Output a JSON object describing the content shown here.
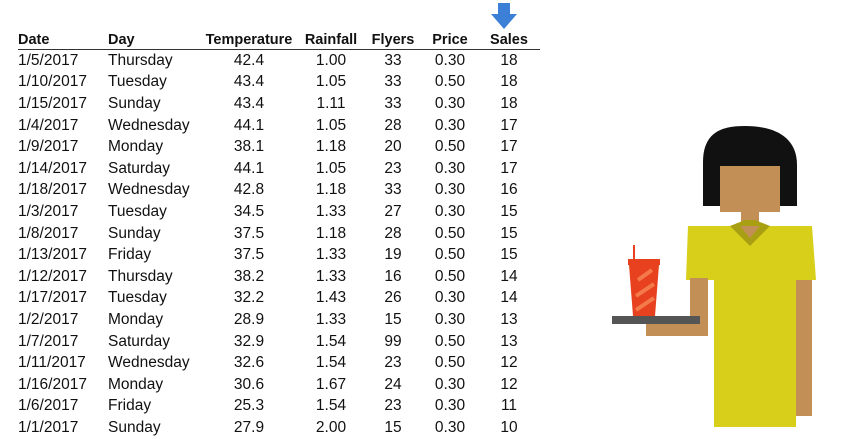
{
  "colors": {
    "arrow": "#3c7fd6",
    "shirt": "#d8cf1a",
    "skin": "#c29057",
    "hair": "#111111",
    "cup": "#e8411f",
    "tray": "#555555"
  },
  "icons": {
    "highlight_arrow": "arrow-down-icon",
    "illustration": "person-with-drink-tray"
  },
  "table": {
    "columns": [
      "Date",
      "Day",
      "Temperature",
      "Rainfall",
      "Flyers",
      "Price",
      "Sales"
    ],
    "rows": [
      [
        "1/5/2017",
        "Thursday",
        "42.4",
        "1.00",
        "33",
        "0.30",
        "18"
      ],
      [
        "1/10/2017",
        "Tuesday",
        "43.4",
        "1.05",
        "33",
        "0.50",
        "18"
      ],
      [
        "1/15/2017",
        "Sunday",
        "43.4",
        "1.11",
        "33",
        "0.30",
        "18"
      ],
      [
        "1/4/2017",
        "Wednesday",
        "44.1",
        "1.05",
        "28",
        "0.30",
        "17"
      ],
      [
        "1/9/2017",
        "Monday",
        "38.1",
        "1.18",
        "20",
        "0.50",
        "17"
      ],
      [
        "1/14/2017",
        "Saturday",
        "44.1",
        "1.05",
        "23",
        "0.30",
        "17"
      ],
      [
        "1/18/2017",
        "Wednesday",
        "42.8",
        "1.18",
        "33",
        "0.30",
        "16"
      ],
      [
        "1/3/2017",
        "Tuesday",
        "34.5",
        "1.33",
        "27",
        "0.30",
        "15"
      ],
      [
        "1/8/2017",
        "Sunday",
        "37.5",
        "1.18",
        "28",
        "0.50",
        "15"
      ],
      [
        "1/13/2017",
        "Friday",
        "37.5",
        "1.33",
        "19",
        "0.50",
        "15"
      ],
      [
        "1/12/2017",
        "Thursday",
        "38.2",
        "1.33",
        "16",
        "0.50",
        "14"
      ],
      [
        "1/17/2017",
        "Tuesday",
        "32.2",
        "1.43",
        "26",
        "0.30",
        "14"
      ],
      [
        "1/2/2017",
        "Monday",
        "28.9",
        "1.33",
        "15",
        "0.30",
        "13"
      ],
      [
        "1/7/2017",
        "Saturday",
        "32.9",
        "1.54",
        "99",
        "0.50",
        "13"
      ],
      [
        "1/11/2017",
        "Wednesday",
        "32.6",
        "1.54",
        "23",
        "0.50",
        "12"
      ],
      [
        "1/16/2017",
        "Monday",
        "30.6",
        "1.67",
        "24",
        "0.30",
        "12"
      ],
      [
        "1/6/2017",
        "Friday",
        "25.3",
        "1.54",
        "23",
        "0.30",
        "11"
      ],
      [
        "1/1/2017",
        "Sunday",
        "27.9",
        "2.00",
        "15",
        "0.30",
        "10"
      ]
    ]
  }
}
